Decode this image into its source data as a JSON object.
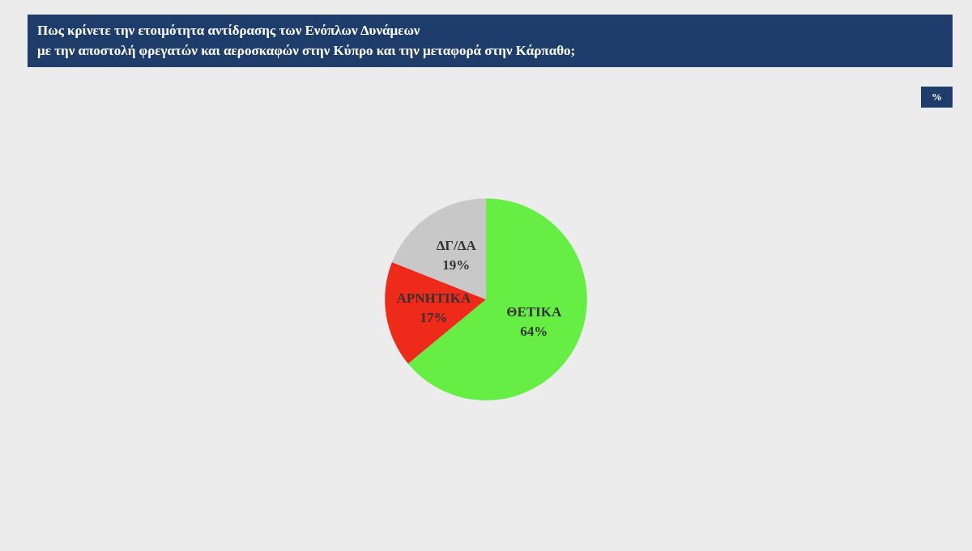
{
  "chart_data": {
    "type": "pie",
    "title": "Πως κρίνετε την ετοιμότητα αντίδρασης των Ενόπλων Δυνάμεων\nμε την αποστολή φρεγατών και αεροσκαφών στην Κύπρο και την μεταφορά στην Κάρπαθο;",
    "categories": [
      "ΘΕΤΙΚΑ",
      "ΑΡΝΗΤΙΚΑ",
      "ΔΓ/ΔΑ"
    ],
    "values": [
      64,
      17,
      19
    ],
    "value_labels": [
      "64%",
      "17%",
      "19%"
    ],
    "colors": [
      "#66ee44",
      "#ee2a1a",
      "#c8c8c8"
    ],
    "annotations": [
      "%"
    ],
    "legend": false
  }
}
